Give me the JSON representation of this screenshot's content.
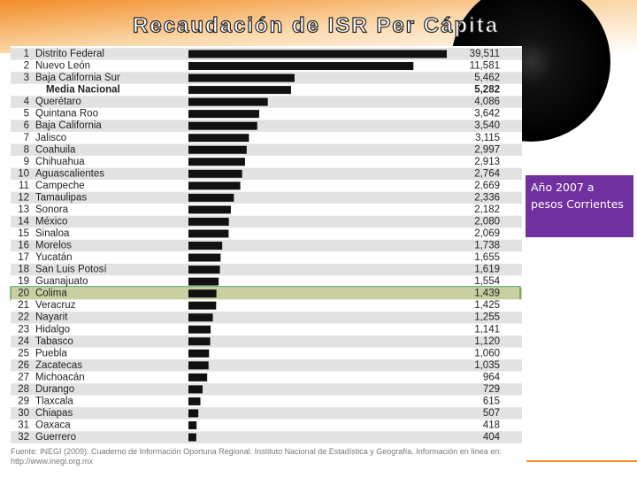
{
  "title": "Recaudación de ISR  Per Cápita",
  "note": "Año 2007 a pesos Corrientes",
  "source": "Fuente: INEGI (2009). Cuaderno de Información Oportuna Regional. Instituto Nacional de Estadística y Geografía. Información en línea en: http://www.inegi.org.mx",
  "chart_data": {
    "type": "bar",
    "orientation": "horizontal",
    "ranks": [
      1,
      2,
      3,
      null,
      4,
      5,
      6,
      7,
      8,
      9,
      10,
      11,
      12,
      13,
      14,
      15,
      16,
      17,
      18,
      19,
      20,
      21,
      22,
      23,
      24,
      25,
      26,
      27,
      28,
      29,
      30,
      31,
      32
    ],
    "categories": [
      "Distrito Federal",
      "Nuevo León",
      "Baja California Sur",
      "Media Nacional",
      "Querétaro",
      "Quintana Roo",
      "Baja California",
      "Jalisco",
      "Coahuila",
      "Chihuahua",
      "Aguascalientes",
      "Campeche",
      "Tamaulipas",
      "Sonora",
      "México",
      "Sinaloa",
      "Morelos",
      "Yucatán",
      "San Luis Potosí",
      "Guanajuato",
      "Colima",
      "Veracruz",
      "Nayarit",
      "Hidalgo",
      "Tabasco",
      "Puebla",
      "Zacatecas",
      "Michoacán",
      "Durango",
      "Tlaxcala",
      "Chiapas",
      "Oaxaca",
      "Guerrero"
    ],
    "values": [
      39511,
      11581,
      5462,
      5282,
      4086,
      3642,
      3540,
      3115,
      2997,
      2913,
      2764,
      2669,
      2336,
      2182,
      2080,
      2069,
      1738,
      1655,
      1619,
      1554,
      1439,
      1425,
      1255,
      1141,
      1120,
      1060,
      1035,
      964,
      729,
      615,
      507,
      418,
      404
    ],
    "value_labels": [
      "39,511",
      "11,581",
      "5,462",
      "5,282",
      "4,086",
      "3,642",
      "3,540",
      "3,115",
      "2,997",
      "2,913",
      "2,764",
      "2,669",
      "2,336",
      "2,182",
      "2,080",
      "2,069",
      "1,738",
      "1,655",
      "1,619",
      "1,554",
      "1,439",
      "1,425",
      "1,255",
      "1,141",
      "1,120",
      "1,060",
      "1,035",
      "964",
      "729",
      "615",
      "507",
      "418",
      "404"
    ],
    "xlim": [
      0,
      13300
    ],
    "color": "#111111",
    "bold_row": 3,
    "highlight_row": 20
  }
}
